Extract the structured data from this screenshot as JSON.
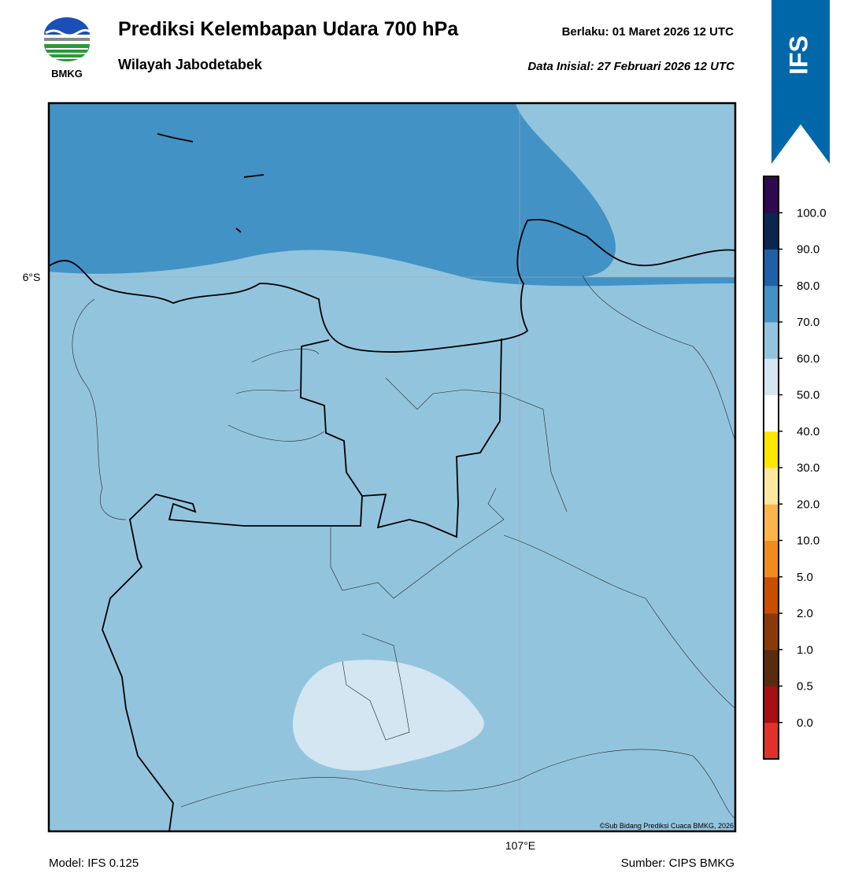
{
  "header": {
    "logo_text": "BMKG",
    "title": "Prediksi Kelembapan Udara 700 hPa",
    "subtitle": "Wilayah Jabodetabek",
    "valid": "Berlaku:  01 Maret 2026 12 UTC",
    "init": "Data Inisial:  27 Februari 2026 12 UTC",
    "badge": "IFS"
  },
  "map": {
    "lat_label": "6°S",
    "lon_label": "107°E",
    "copyright": "©Sub Bidang Prediksi Cuaca BMKG, 2026"
  },
  "colorbar": {
    "colors": [
      "#e0322a",
      "#a50f15",
      "#5a2b10",
      "#8a3a0a",
      "#c84e04",
      "#f08c1e",
      "#fdb44a",
      "#fee8a0",
      "#ffe600",
      "#ffffff",
      "#d3e6f1",
      "#93c4de",
      "#4292c6",
      "#2060a8",
      "#0a2550",
      "#2d0a50"
    ],
    "labels": [
      "0.0",
      "0.5",
      "1.0",
      "2.0",
      "5.0",
      "10.0",
      "20.0",
      "30.0",
      "40.0",
      "50.0",
      "60.0",
      "70.0",
      "80.0",
      "90.0",
      "100.0"
    ]
  },
  "footer": {
    "model": "Model: IFS 0.125",
    "source": "Sumber: CIPS BMKG"
  }
}
